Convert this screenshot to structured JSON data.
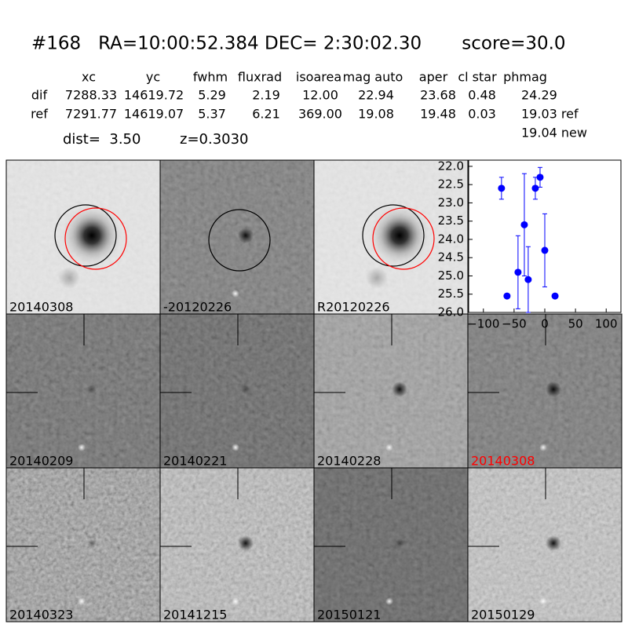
{
  "header": {
    "title": "#168   RA=10:00:52.384 DEC= 2:30:02.30       score=30.0"
  },
  "table": {
    "columns": [
      "xc",
      "yc",
      "fwhm",
      "fluxrad",
      "isoarea",
      "mag auto",
      "aper",
      "cl star",
      "phmag"
    ],
    "rows": [
      [
        "dif",
        "7288.33",
        "14619.72",
        "5.29",
        "2.19",
        "12.00",
        "22.94",
        "23.68",
        "0.48",
        "24.29"
      ],
      [
        "ref",
        "7291.77",
        "14619.07",
        "5.37",
        "6.21",
        "369.00",
        "19.08",
        "19.48",
        "0.03",
        "19.03 ref"
      ]
    ],
    "note": "19.04 new"
  },
  "info": {
    "dist": "dist=  3.50",
    "z": "z=0.3030"
  },
  "panels": [
    {
      "label": "20140308",
      "color": "#000000"
    },
    {
      "label": "-20120226",
      "color": "#000000"
    },
    {
      "label": "R20120226",
      "color": "#000000"
    },
    {
      "label": "20140209",
      "color": "#000000"
    },
    {
      "label": "20140221",
      "color": "#000000"
    },
    {
      "label": "20140228",
      "color": "#000000"
    },
    {
      "label": "20140308",
      "color": "#ff0000"
    },
    {
      "label": "20140323",
      "color": "#000000"
    },
    {
      "label": "20141215",
      "color": "#000000"
    },
    {
      "label": "20150121",
      "color": "#000000"
    },
    {
      "label": "20150129",
      "color": "#000000"
    }
  ],
  "chart_data": {
    "type": "scatter",
    "x": [
      -70.5,
      -61.5,
      -43.6,
      -33.3,
      -27,
      -15.4,
      -7.7,
      0,
      16.7
    ],
    "series": [
      {
        "color": "#0000ff",
        "values": [
          22.6,
          25.55,
          24.9,
          23.6,
          25.1,
          22.6,
          22.3,
          24.3,
          25.55
        ],
        "errors": [
          0.3,
          0.05,
          1.0,
          1.4,
          0.9,
          0.3,
          0.27,
          1.0,
          0.05
        ]
      }
    ],
    "xlim": [
      -124,
      124
    ],
    "xticks": [
      {
        "value": -100,
        "label": "−100"
      },
      {
        "value": -50,
        "label": "−50"
      },
      0,
      50,
      100
    ],
    "ylim": [
      26,
      21.83
    ],
    "yticks": [
      {
        "value": 22,
        "label": "22.0"
      },
      {
        "value": 22.5,
        "label": "22.5"
      },
      {
        "value": 23,
        "label": "23.0"
      },
      {
        "value": 23.5,
        "label": "23.5"
      },
      {
        "value": 24,
        "label": "24.0"
      },
      {
        "value": 24.5,
        "label": "24.5"
      },
      {
        "value": 25,
        "label": "25.0"
      },
      {
        "value": 25.5,
        "label": "25.5"
      },
      {
        "value": 26,
        "label": "26.0"
      }
    ]
  }
}
